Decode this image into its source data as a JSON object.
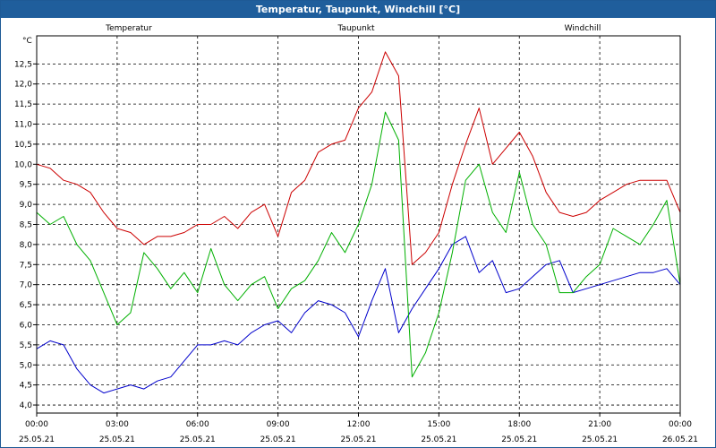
{
  "window": {
    "title": "Temperatur, Taupunkt, Windchill [°C]"
  },
  "chart_data": {
    "type": "line",
    "title": "Temperatur, Taupunkt, Windchill [°C]",
    "ylabel": "°C",
    "ylim": [
      3.8,
      13.2
    ],
    "xlim": [
      0,
      24
    ],
    "grid": true,
    "legend": "top",
    "y_ticks": [
      "4,0",
      "4,5",
      "5,0",
      "5,5",
      "6,0",
      "6,5",
      "7,0",
      "7,5",
      "8,0",
      "8,5",
      "9,0",
      "9,5",
      "10,0",
      "10,5",
      "11,0",
      "11,5",
      "12,0",
      "12,5"
    ],
    "x_ticks": [
      {
        "time": "00:00",
        "date": "25.05.21"
      },
      {
        "time": "03:00",
        "date": "25.05.21"
      },
      {
        "time": "06:00",
        "date": "25.05.21"
      },
      {
        "time": "09:00",
        "date": "25.05.21"
      },
      {
        "time": "12:00",
        "date": "25.05.21"
      },
      {
        "time": "15:00",
        "date": "25.05.21"
      },
      {
        "time": "18:00",
        "date": "25.05.21"
      },
      {
        "time": "21:00",
        "date": "25.05.21"
      },
      {
        "time": "00:00",
        "date": "26.05.21"
      }
    ],
    "x_hours": [
      0,
      0.5,
      1,
      1.5,
      2,
      2.5,
      3,
      3.5,
      4,
      4.5,
      5,
      5.5,
      6,
      6.5,
      7,
      7.5,
      8,
      8.5,
      9,
      9.5,
      10,
      10.5,
      11,
      11.5,
      12,
      12.5,
      13,
      13.5,
      14,
      14.5,
      15,
      15.5,
      16,
      16.5,
      17,
      17.5,
      18,
      18.5,
      19,
      19.5,
      20,
      20.5,
      21,
      21.5,
      22,
      22.5,
      23,
      23.5,
      24
    ],
    "series": [
      {
        "name": "Temperatur",
        "color": "#cc0000",
        "values": [
          10.0,
          9.9,
          9.6,
          9.5,
          9.3,
          8.8,
          8.4,
          8.3,
          8.0,
          8.2,
          8.2,
          8.3,
          8.5,
          8.5,
          8.7,
          8.4,
          8.8,
          9.0,
          8.2,
          9.3,
          9.6,
          10.3,
          10.5,
          10.6,
          11.4,
          11.8,
          12.8,
          12.2,
          7.5,
          7.8,
          8.3,
          9.5,
          10.5,
          11.4,
          10.0,
          10.4,
          10.8,
          10.2,
          9.3,
          8.8,
          8.7,
          8.8,
          9.1,
          9.3,
          9.5,
          9.6,
          9.6,
          9.6,
          8.8
        ]
      },
      {
        "name": "Taupunkt",
        "color": "#0000cc",
        "values": [
          5.4,
          5.6,
          5.5,
          4.9,
          4.5,
          4.3,
          4.4,
          4.5,
          4.4,
          4.6,
          4.7,
          5.1,
          5.5,
          5.5,
          5.6,
          5.5,
          5.8,
          6.0,
          6.1,
          5.8,
          6.3,
          6.6,
          6.5,
          6.3,
          5.7,
          6.6,
          7.4,
          5.8,
          6.4,
          6.9,
          7.4,
          8.0,
          8.2,
          7.3,
          7.6,
          6.8,
          6.9,
          7.2,
          7.5,
          7.6,
          6.8,
          6.9,
          7.0,
          7.1,
          7.2,
          7.3,
          7.3,
          7.4,
          7.0
        ]
      },
      {
        "name": "Windchill",
        "color": "#00b000",
        "values": [
          8.8,
          8.5,
          8.7,
          8.0,
          7.6,
          6.8,
          6.0,
          6.3,
          7.8,
          7.4,
          6.9,
          7.3,
          6.8,
          7.9,
          7.0,
          6.6,
          7.0,
          7.2,
          6.4,
          6.9,
          7.1,
          7.6,
          8.3,
          7.8,
          8.5,
          9.5,
          11.3,
          10.6,
          4.7,
          5.3,
          6.3,
          7.8,
          9.6,
          10.0,
          8.8,
          8.3,
          9.8,
          8.5,
          8.0,
          6.8,
          6.8,
          7.2,
          7.5,
          8.4,
          8.2,
          8.0,
          8.5,
          9.1,
          7.0
        ]
      }
    ]
  }
}
